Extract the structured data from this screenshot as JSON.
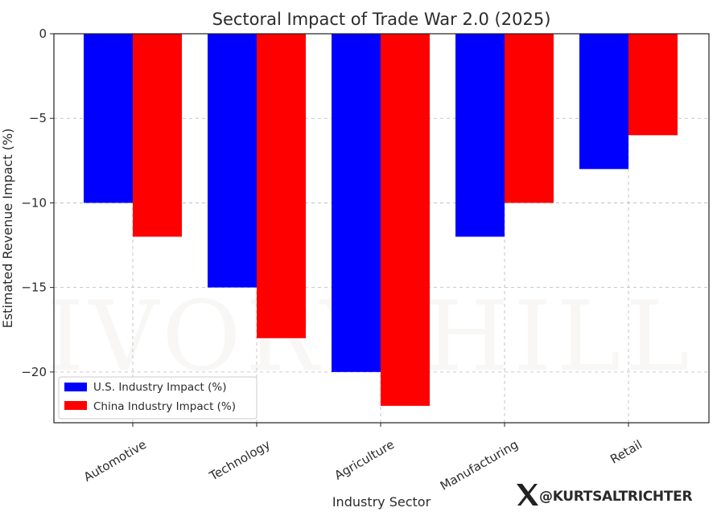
{
  "chart_data": {
    "type": "bar",
    "title": "Sectoral Impact of Trade War 2.0 (2025)",
    "xlabel": "Industry Sector",
    "ylabel": "Estimated Revenue Impact (%)",
    "categories": [
      "Automotive",
      "Technology",
      "Agriculture",
      "Manufacturing",
      "Retail"
    ],
    "series": [
      {
        "name": "U.S. Industry Impact (%)",
        "color": "#0000ff",
        "values": [
          -10,
          -15,
          -20,
          -12,
          -8
        ]
      },
      {
        "name": "China Industry Impact (%)",
        "color": "#ff0000",
        "values": [
          -12,
          -18,
          -22,
          -10,
          -6
        ]
      }
    ],
    "ylim": [
      -23,
      0
    ],
    "yticks": [
      0,
      -5,
      -10,
      -15,
      -20
    ],
    "ytick_labels": [
      "0",
      "−5",
      "−10",
      "−15",
      "−20"
    ],
    "grid": true,
    "legend_position": "lower-left"
  },
  "watermark": {
    "text": "IVORY HILL"
  },
  "credit": {
    "icon": "x-logo-icon",
    "handle": "@KURTSALTRICHTER"
  }
}
